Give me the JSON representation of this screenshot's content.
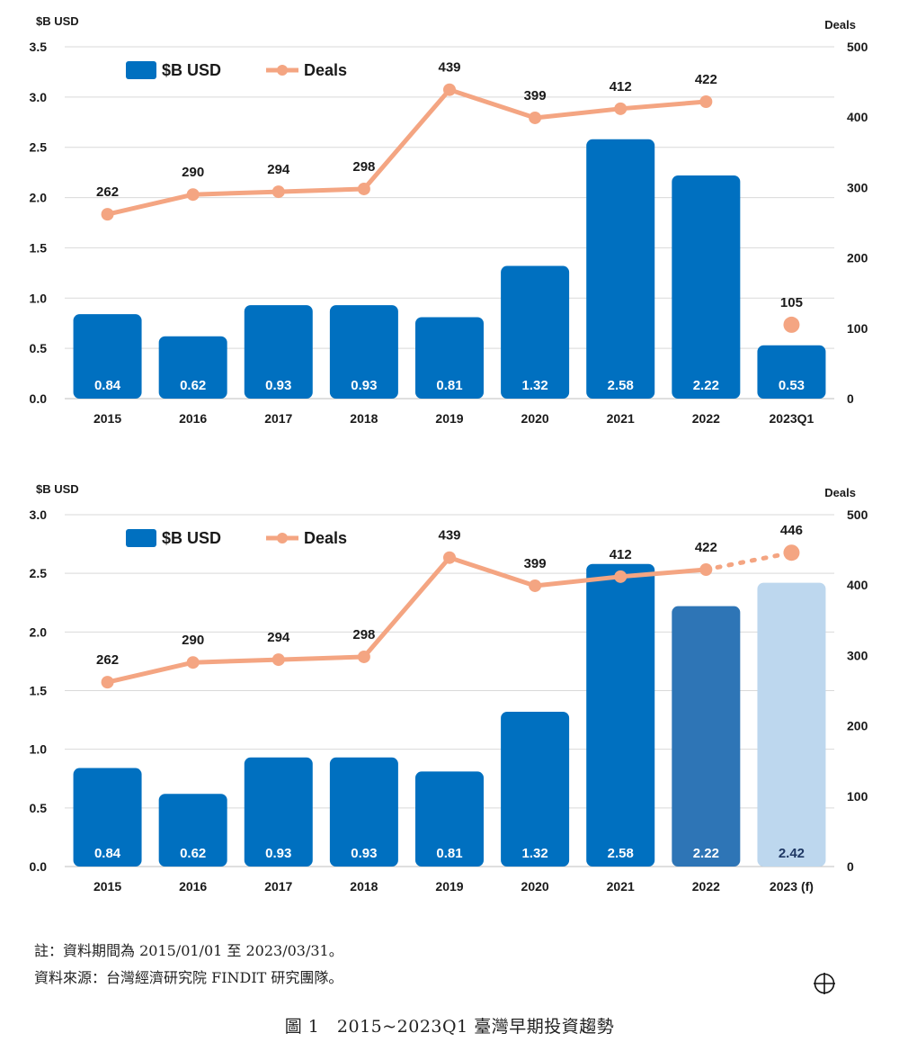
{
  "chart_data": [
    {
      "type": "bar",
      "categories": [
        "2015",
        "2016",
        "2017",
        "2018",
        "2019",
        "2020",
        "2021",
        "2022",
        "2023Q1"
      ],
      "series": [
        {
          "name": "$B USD",
          "type": "bar",
          "axis": "left",
          "values": [
            0.84,
            0.62,
            0.93,
            0.93,
            0.81,
            1.32,
            2.58,
            2.22,
            0.53
          ],
          "labels": [
            "0.84",
            "0.62",
            "0.93",
            "0.93",
            "0.81",
            "1.32",
            "2.58",
            "2.22",
            "0.53"
          ]
        },
        {
          "name": "Deals",
          "type": "line",
          "axis": "right",
          "values": [
            262,
            290,
            294,
            298,
            439,
            399,
            412,
            422,
            105
          ],
          "labels": [
            "262",
            "290",
            "294",
            "298",
            "439",
            "399",
            "412",
            "422",
            "105"
          ]
        }
      ],
      "left_axis_title": "$B USD",
      "right_axis_title": "Deals",
      "ylim_left": [
        0,
        3.5
      ],
      "yticks_left": [
        "0.0",
        "0.5",
        "1.0",
        "1.5",
        "2.0",
        "2.5",
        "3.0",
        "3.5"
      ],
      "ylim_right": [
        0,
        500
      ],
      "yticks_right": [
        "0",
        "100",
        "200",
        "300",
        "400",
        "500"
      ],
      "legend_position": "top-left",
      "grid": true
    },
    {
      "type": "bar",
      "categories": [
        "2015",
        "2016",
        "2017",
        "2018",
        "2019",
        "2020",
        "2021",
        "2022",
        "2023 (f)"
      ],
      "series": [
        {
          "name": "$B USD",
          "type": "bar",
          "axis": "left",
          "values": [
            0.84,
            0.62,
            0.93,
            0.93,
            0.81,
            1.32,
            2.58,
            2.22,
            2.42
          ],
          "labels": [
            "0.84",
            "0.62",
            "0.93",
            "0.93",
            "0.81",
            "1.32",
            "2.58",
            "2.22",
            "2.42"
          ]
        },
        {
          "name": "Deals",
          "type": "line",
          "axis": "right",
          "values": [
            262,
            290,
            294,
            298,
            439,
            399,
            412,
            422,
            446
          ],
          "labels": [
            "262",
            "290",
            "294",
            "298",
            "439",
            "399",
            "412",
            "422",
            "446"
          ]
        }
      ],
      "left_axis_title": "$B USD",
      "right_axis_title": "Deals",
      "ylim_left": [
        0,
        3.0
      ],
      "yticks_left": [
        "0.0",
        "0.5",
        "1.0",
        "1.5",
        "2.0",
        "2.5",
        "3.0"
      ],
      "ylim_right": [
        0,
        500
      ],
      "yticks_right": [
        "0",
        "100",
        "200",
        "300",
        "400",
        "500"
      ],
      "legend_position": "top-left",
      "grid": true,
      "forecast_category": "2023 (f)"
    }
  ],
  "colors": {
    "bar": "#0070c0",
    "bar_2022_forecast_chart": "#2e75b6",
    "bar_forecast": "#bdd7ee",
    "line": "#f4a582",
    "grid": "#d9d9d9",
    "text": "#1a1a1a"
  },
  "notes": {
    "note": "註：資料期間為 2015/01/01 至 2023/03/31。",
    "source": "資料來源：台灣經濟研究院 FINDIT 研究團隊。"
  },
  "caption": "圖 1　2015~2023Q1 臺灣早期投資趨勢",
  "icons": {
    "corner_mark": "crosshair-circle-icon"
  }
}
